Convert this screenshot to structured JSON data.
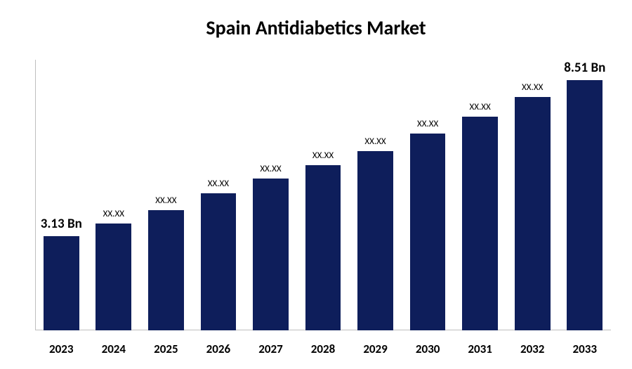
{
  "chart": {
    "type": "bar",
    "title": "Spain Antidiabetics Market",
    "title_fontsize": 28,
    "title_color": "#000000",
    "background_color": "#ffffff",
    "bar_color": "#0e1e5b",
    "axis_color": "#bfbfbf",
    "bar_width_pct": 68,
    "x_label_fontsize": 17,
    "endpoint_label_fontsize": 19,
    "mid_label_fontsize": 13,
    "ylim": [
      0,
      9
    ],
    "categories": [
      "2023",
      "2024",
      "2025",
      "2026",
      "2027",
      "2028",
      "2029",
      "2030",
      "2031",
      "2032",
      "2033"
    ],
    "values": [
      3.13,
      3.55,
      4.0,
      4.55,
      5.05,
      5.5,
      5.95,
      6.55,
      7.1,
      7.75,
      8.51
    ],
    "value_labels": [
      "3.13 Bn",
      "XX.XX",
      "XX.XX",
      "XX.XX",
      "XX.XX",
      "XX.XX",
      "XX.XX",
      "XX.XX",
      "XX.XX",
      "XX.XX",
      "8.51 Bn"
    ],
    "label_is_endpoint": [
      true,
      false,
      false,
      false,
      false,
      false,
      false,
      false,
      false,
      false,
      true
    ]
  }
}
